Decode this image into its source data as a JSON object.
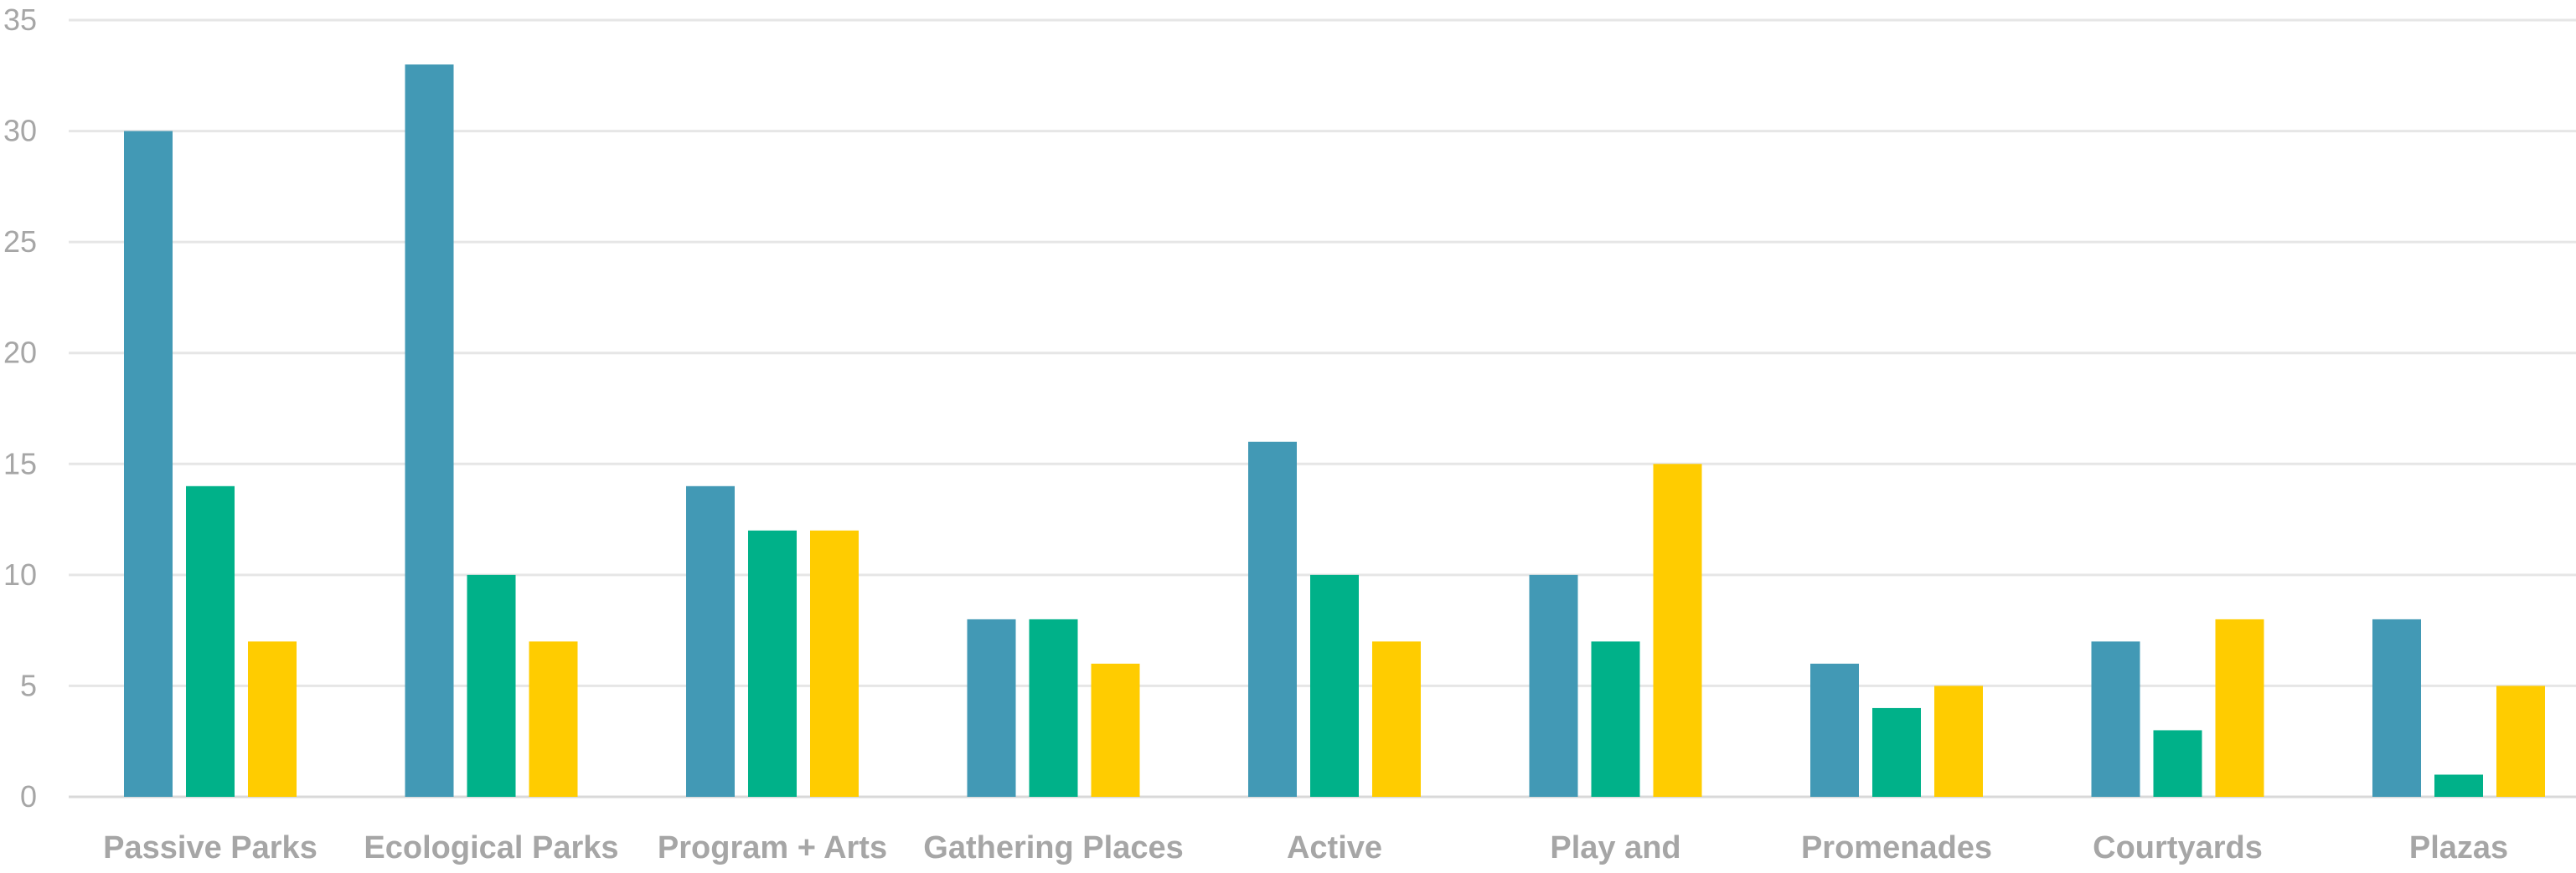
{
  "chart_data": {
    "type": "bar",
    "title": "",
    "xlabel": "",
    "ylabel": "",
    "ylim": [
      0,
      35
    ],
    "y_ticks": [
      0,
      5,
      10,
      15,
      20,
      25,
      30,
      35
    ],
    "grid": true,
    "legend": "none",
    "categories": [
      "Passive Parks",
      "Ecological Parks",
      "Program + Arts",
      "Gathering Places",
      "Active",
      "Play and",
      "Promenades",
      "Courtyards",
      "Plazas"
    ],
    "series": [
      {
        "color": "#4299b5",
        "values": [
          30,
          33,
          14,
          8,
          16,
          10,
          6,
          7,
          8
        ]
      },
      {
        "color": "#00b189",
        "values": [
          14,
          10,
          12,
          8,
          10,
          7,
          4,
          3,
          1
        ]
      },
      {
        "color": "#ffcc00",
        "values": [
          7,
          7,
          12,
          6,
          7,
          15,
          5,
          8,
          5
        ]
      }
    ]
  }
}
